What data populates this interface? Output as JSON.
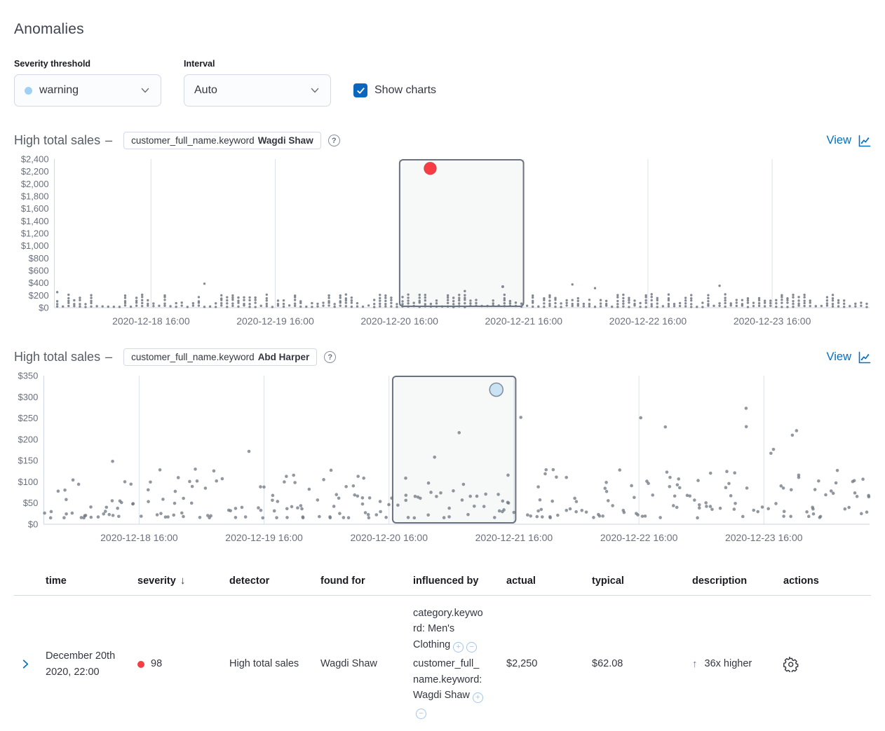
{
  "page": {
    "title": "Anomalies"
  },
  "controls": {
    "severity": {
      "label": "Severity threshold",
      "selected": "warning",
      "dot_color": "#9fd0f5"
    },
    "interval": {
      "label": "Interval",
      "selected": "Auto"
    },
    "show_charts": {
      "label": "Show charts",
      "checked": true
    }
  },
  "icons": {
    "help": "?",
    "sort_desc": "↓",
    "arrow_up": "↑",
    "filter_for": "+",
    "filter_out": "−"
  },
  "colors": {
    "checkbox": "#0b66bd",
    "accent": "#0071c2",
    "anomaly_critical": "#f63d43",
    "anomaly_warning_fill": "#c9e3f5",
    "anomaly_warning_stroke": "#7e8c9a",
    "scatter_dot": "#6d7580",
    "gridline": "#dbe1ea",
    "axis": "#cdd5e2",
    "tick_text": "#69707d",
    "selection_border": "#6a7280",
    "selection_fill": "rgba(105,112,125,0.05)"
  },
  "chart_data": [
    {
      "type": "scatter",
      "title": "High total sales",
      "separator": "–",
      "badge": {
        "field": "customer_full_name.keyword",
        "value": "Wagdi Shaw"
      },
      "view_label": "View",
      "y_axis": {
        "max": 2400,
        "step": 200,
        "tick_labels": [
          "$2,400",
          "$2,200",
          "$2,000",
          "$1,800",
          "$1,600",
          "$1,400",
          "$1,200",
          "$1,000",
          "$800",
          "$600",
          "$400",
          "$200",
          "$0"
        ]
      },
      "x_axis": {
        "tick_labels": [
          "2020-12-18 16:00",
          "2020-12-19 16:00",
          "2020-12-20 16:00",
          "2020-12-21 16:00",
          "2020-12-22 16:00",
          "2020-12-23 16:00"
        ],
        "first_fraction": 0.1185,
        "spacing_fraction": 0.1524
      },
      "selection": {
        "from_fraction": 0.4235,
        "to_fraction": 0.5755,
        "time_range": "2020-12-20 16:00 to 2020-12-21 16:00"
      },
      "anomaly_points": [
        {
          "x_fraction": 0.461,
          "value": 2250,
          "severity": "critical",
          "radius": 9
        }
      ],
      "extra_points": [
        {
          "x_fraction": 0.55,
          "value": 340
        }
      ],
      "background_points": {
        "pattern": "stacked-columns",
        "columns": 144,
        "seed": 13,
        "base_value": 10,
        "stack_step": 46,
        "max_stack": 5,
        "spike_chance": 0.05,
        "spike_min": 250,
        "spike_range": 170,
        "dot_radius": 1.7
      }
    },
    {
      "type": "scatter",
      "title": "High total sales",
      "separator": "–",
      "badge": {
        "field": "customer_full_name.keyword",
        "value": "Abd Harper"
      },
      "view_label": "View",
      "y_axis": {
        "max": 350,
        "step": 50,
        "tick_labels": [
          "$350",
          "$300",
          "$250",
          "$200",
          "$150",
          "$100",
          "$50",
          "$0"
        ]
      },
      "x_axis": {
        "tick_labels": [
          "2020-12-18 16:00",
          "2020-12-19 16:00",
          "2020-12-20 16:00",
          "2020-12-21 16:00",
          "2020-12-22 16:00",
          "2020-12-23 16:00"
        ],
        "first_fraction": 0.1155,
        "spacing_fraction": 0.1513
      },
      "selection": {
        "from_fraction": 0.4225,
        "to_fraction": 0.5715,
        "time_range": "2020-12-20 16:00 to 2020-12-21 16:00"
      },
      "anomaly_points": [
        {
          "x_fraction": 0.548,
          "value": 317,
          "severity": "warning",
          "radius": 9.5
        }
      ],
      "extra_points": [],
      "background_points": {
        "pattern": "scatter",
        "columns": 150,
        "seed": 29,
        "base_value": 15,
        "value_range": 115,
        "spike_chance": 0.07,
        "spike_min": 135,
        "spike_range": 140,
        "dot_radius": 2.3
      }
    }
  ],
  "table": {
    "columns": [
      "time",
      "severity",
      "detector",
      "found for",
      "influenced by",
      "actual",
      "typical",
      "description",
      "actions"
    ],
    "sort": {
      "column": "severity",
      "direction": "desc"
    },
    "rows": [
      {
        "time": "December 20th 2020, 22:00",
        "severity": "98",
        "severity_color": "#f63d43",
        "detector": "High total sales",
        "found_for": "Wagdi Shaw",
        "influenced_by": [
          {
            "text": "category.keyword: Men's Clothing"
          },
          {
            "text": "customer_full_name.keyword: Wagdi Shaw"
          }
        ],
        "actual": "$2,250",
        "typical": "$62.08",
        "description": "36x higher",
        "description_direction": "up"
      }
    ]
  }
}
